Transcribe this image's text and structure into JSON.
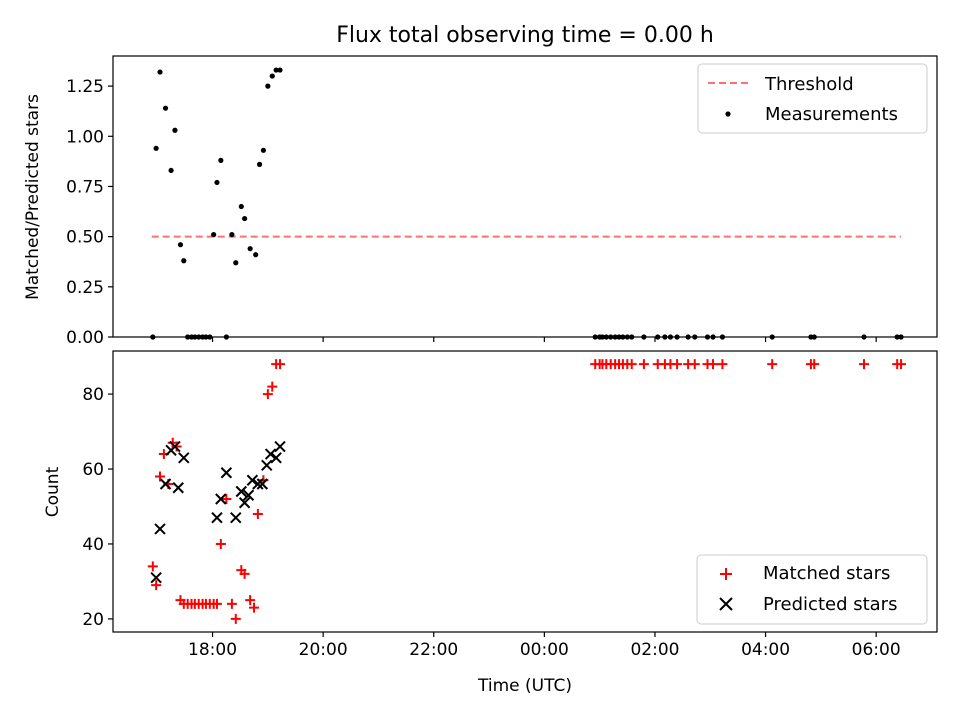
{
  "chart_data": [
    {
      "type": "scatter",
      "title": "Flux total observing time = 0.00 h",
      "xlabel": "",
      "ylabel": "Matched/Predicted stars",
      "x_unit": "hours after 00:00 on the first night (values ≥ 24 are next day)",
      "xlim": [
        16.2,
        31.1
      ],
      "ylim": [
        0.0,
        1.4
      ],
      "yticks": [
        0.0,
        0.25,
        0.5,
        0.75,
        1.0,
        1.25
      ],
      "ytick_labels": [
        "0.00",
        "0.25",
        "0.50",
        "0.75",
        "1.00",
        "1.25"
      ],
      "xticks": [
        18,
        20,
        22,
        24,
        26,
        28,
        30
      ],
      "xtick_labels": [
        "18:00",
        "20:00",
        "22:00",
        "00:00",
        "02:00",
        "04:00",
        "06:00"
      ],
      "legend": {
        "placement": "top-right",
        "entries": [
          "Threshold",
          "Measurements"
        ]
      },
      "threshold": {
        "name": "Threshold",
        "value": 0.5,
        "x_range": [
          16.9,
          30.45
        ],
        "color": "#ff7070",
        "style": "dashed"
      },
      "series": [
        {
          "name": "Measurements",
          "color": "#000000",
          "marker": "dot",
          "x": [
            16.92,
            16.98,
            17.05,
            17.15,
            17.25,
            17.32,
            17.42,
            17.48,
            17.55,
            17.62,
            17.68,
            17.75,
            17.82,
            17.88,
            17.95,
            18.02,
            18.08,
            18.15,
            18.25,
            18.35,
            18.42,
            18.52,
            18.58,
            18.68,
            18.78,
            18.85,
            18.92,
            19.0,
            19.08,
            19.15,
            19.22,
            24.92,
            25.0,
            25.05,
            25.12,
            25.2,
            25.28,
            25.35,
            25.42,
            25.5,
            25.58,
            25.8,
            26.05,
            26.18,
            26.28,
            26.4,
            26.6,
            26.72,
            26.95,
            27.05,
            27.22,
            28.12,
            28.82,
            28.88,
            29.78,
            30.38,
            30.45
          ],
          "y": [
            0.0,
            0.94,
            1.32,
            1.14,
            0.83,
            1.03,
            0.46,
            0.38,
            0.0,
            0.0,
            0.0,
            0.0,
            0.0,
            0.0,
            0.0,
            0.51,
            0.77,
            0.88,
            0.0,
            0.51,
            0.37,
            0.65,
            0.59,
            0.44,
            0.41,
            0.86,
            0.93,
            1.25,
            1.3,
            1.33,
            1.33,
            0.0,
            0.0,
            0.0,
            0.0,
            0.0,
            0.0,
            0.0,
            0.0,
            0.0,
            0.0,
            0.0,
            0.0,
            0.0,
            0.0,
            0.0,
            0.0,
            0.0,
            0.0,
            0.0,
            0.0,
            0.0,
            0.0,
            0.0,
            0.0,
            0.0,
            0.0
          ]
        }
      ]
    },
    {
      "type": "scatter",
      "title": "",
      "xlabel": "Time (UTC)",
      "ylabel": "Count",
      "xlim": [
        16.2,
        31.1
      ],
      "ylim": [
        16.5,
        91.5
      ],
      "yticks": [
        20,
        40,
        60,
        80
      ],
      "ytick_labels": [
        "20",
        "40",
        "60",
        "80"
      ],
      "xticks": [
        18,
        20,
        22,
        24,
        26,
        28,
        30
      ],
      "xtick_labels": [
        "18:00",
        "20:00",
        "22:00",
        "00:00",
        "02:00",
        "04:00",
        "06:00"
      ],
      "legend": {
        "placement": "bottom-right",
        "entries": [
          "Matched stars",
          "Predicted stars"
        ]
      },
      "series": [
        {
          "name": "Matched stars",
          "color": "#ff0000",
          "marker": "plus",
          "x": [
            16.92,
            16.98,
            17.05,
            17.12,
            17.2,
            17.28,
            17.35,
            17.42,
            17.48,
            17.55,
            17.62,
            17.68,
            17.75,
            17.82,
            17.88,
            17.95,
            18.02,
            18.08,
            18.15,
            18.25,
            18.35,
            18.42,
            18.52,
            18.58,
            18.68,
            18.75,
            18.82,
            18.92,
            19.0,
            19.08,
            19.15,
            19.22,
            24.92,
            25.0,
            25.05,
            25.12,
            25.2,
            25.28,
            25.35,
            25.42,
            25.5,
            25.58,
            25.8,
            26.05,
            26.18,
            26.28,
            26.4,
            26.6,
            26.72,
            26.95,
            27.05,
            27.22,
            28.12,
            28.82,
            28.88,
            29.78,
            30.38,
            30.45
          ],
          "y": [
            34,
            29,
            58,
            64,
            56,
            67,
            66,
            25,
            24,
            24,
            24,
            24,
            24,
            24,
            24,
            24,
            24,
            24,
            40,
            52,
            24,
            20,
            33,
            32,
            25,
            23,
            48,
            57,
            80,
            82,
            88,
            88,
            88,
            88,
            88,
            88,
            88,
            88,
            88,
            88,
            88,
            88,
            88,
            88,
            88,
            88,
            88,
            88,
            88,
            88,
            88,
            88,
            88,
            88,
            88,
            88,
            88,
            88
          ]
        },
        {
          "name": "Predicted stars",
          "color": "#000000",
          "marker": "cross",
          "x": [
            16.98,
            17.05,
            17.15,
            17.25,
            17.32,
            17.38,
            17.48,
            18.08,
            18.15,
            18.25,
            18.42,
            18.52,
            18.58,
            18.65,
            18.72,
            18.82,
            18.9,
            18.98,
            19.05,
            19.15,
            19.22
          ],
          "y": [
            31,
            44,
            56,
            65,
            66,
            55,
            63,
            47,
            52,
            59,
            47,
            54,
            51,
            53,
            57,
            56,
            56,
            61,
            64,
            63,
            66
          ]
        }
      ]
    }
  ]
}
